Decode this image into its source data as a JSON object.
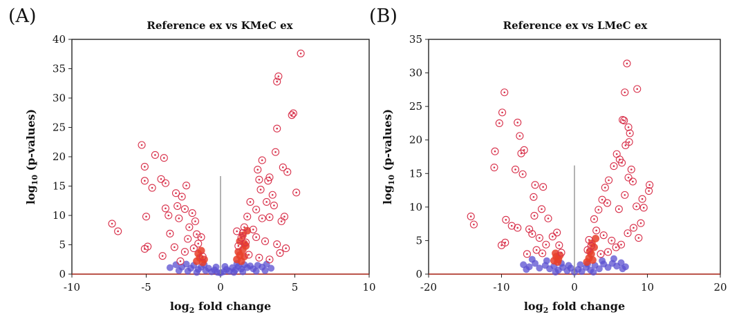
{
  "figure": {
    "panels": [
      {
        "letter": "(A)",
        "title": "Reference ex vs KMeC ex",
        "xlabel_base": "log",
        "xlabel_sub": "2",
        "xlabel_rest": " fold change",
        "ylabel_base": "log",
        "ylabel_sub": "10",
        "ylabel_rest": " (p-values)"
      },
      {
        "letter": "(B)",
        "title": "Reference ex vs LMeC ex",
        "xlabel_base": "log",
        "xlabel_sub": "2",
        "xlabel_rest": " fold change",
        "ylabel_base": "log",
        "ylabel_sub": "10",
        "ylabel_rest": " (p-values)"
      }
    ]
  },
  "colors": {
    "significant": "#d8304a",
    "nonsignificant": "#5a4fd0",
    "core": "#e8402a",
    "axis_red": "#c0392b"
  },
  "chart_data": [
    {
      "type": "scatter",
      "title": "Reference ex vs KMeC ex",
      "xlabel": "log2 fold change",
      "ylabel": "log10 (p-values)",
      "xlim": [
        -10,
        10
      ],
      "ylim": [
        0,
        40
      ],
      "xticks": [
        -10,
        -5,
        0,
        5,
        10
      ],
      "yticks": [
        0,
        5,
        10,
        15,
        20,
        25,
        30,
        35,
        40
      ],
      "grid": false,
      "center_line_top": 16.7,
      "series": [
        {
          "values": [
            [
              5.4,
              37.6
            ],
            [
              3.9,
              33.7
            ],
            [
              3.8,
              32.8
            ],
            [
              4.9,
              27.4
            ],
            [
              4.8,
              27.1
            ],
            [
              3.8,
              24.8
            ],
            [
              -5.3,
              22.0
            ],
            [
              -4.4,
              20.3
            ],
            [
              -3.8,
              19.8
            ],
            [
              -5.1,
              18.3
            ],
            [
              3.7,
              20.8
            ],
            [
              4.2,
              18.2
            ],
            [
              4.5,
              17.4
            ],
            [
              2.8,
              19.4
            ],
            [
              2.5,
              17.8
            ],
            [
              -4.0,
              16.2
            ],
            [
              -3.7,
              15.5
            ],
            [
              -2.3,
              15.1
            ],
            [
              -5.1,
              15.9
            ],
            [
              5.1,
              13.9
            ],
            [
              -3.0,
              13.8
            ],
            [
              3.2,
              15.9
            ],
            [
              3.3,
              16.5
            ],
            [
              2.6,
              16.1
            ],
            [
              2.7,
              14.4
            ],
            [
              -7.3,
              8.6
            ],
            [
              -6.9,
              7.3
            ],
            [
              -5.0,
              9.8
            ],
            [
              -4.9,
              4.7
            ],
            [
              -5.1,
              4.3
            ],
            [
              -3.5,
              10.0
            ],
            [
              -3.7,
              11.2
            ],
            [
              -2.9,
              11.6
            ],
            [
              -2.4,
              11.1
            ],
            [
              -1.9,
              10.4
            ],
            [
              -1.7,
              9.0
            ],
            [
              -2.8,
              9.5
            ],
            [
              -3.4,
              6.9
            ],
            [
              -2.1,
              8.0
            ],
            [
              -1.6,
              6.8
            ],
            [
              4.1,
              9.0
            ],
            [
              4.3,
              9.8
            ],
            [
              3.6,
              11.7
            ],
            [
              3.1,
              12.3
            ],
            [
              2.4,
              11.0
            ],
            [
              2.0,
              12.3
            ],
            [
              2.8,
              9.5
            ],
            [
              3.3,
              9.7
            ],
            [
              1.8,
              9.8
            ],
            [
              1.6,
              8.0
            ],
            [
              2.2,
              7.6
            ],
            [
              2.4,
              6.3
            ],
            [
              3.0,
              5.6
            ],
            [
              3.8,
              5.1
            ],
            [
              4.0,
              3.6
            ],
            [
              -3.9,
              3.1
            ],
            [
              -3.1,
              4.6
            ],
            [
              -2.4,
              3.8
            ],
            [
              -1.8,
              4.4
            ],
            [
              -1.5,
              5.2
            ],
            [
              -1.2,
              3.0
            ],
            [
              -2.7,
              2.2
            ],
            [
              1.2,
              4.8
            ],
            [
              1.4,
              6.2
            ],
            [
              1.7,
              5.4
            ],
            [
              1.9,
              3.3
            ],
            [
              2.6,
              2.8
            ],
            [
              3.3,
              2.5
            ],
            [
              -2.2,
              6.0
            ],
            [
              -1.3,
              6.3
            ],
            [
              1.1,
              7.3
            ],
            [
              1.5,
              7.0
            ],
            [
              3.5,
              13.5
            ],
            [
              -4.6,
              14.7
            ],
            [
              -2.6,
              13.2
            ],
            [
              4.4,
              4.4
            ]
          ]
        },
        {
          "values": [
            [
              -3.0,
              1.6
            ],
            [
              -2.6,
              1.2
            ],
            [
              -2.3,
              1.7
            ],
            [
              -2.0,
              1.0
            ],
            [
              -1.8,
              1.5
            ],
            [
              -1.5,
              0.8
            ],
            [
              -1.3,
              1.2
            ],
            [
              -1.0,
              0.6
            ],
            [
              -0.8,
              1.0
            ],
            [
              -0.6,
              0.4
            ],
            [
              -0.4,
              0.7
            ],
            [
              -0.2,
              0.3
            ],
            [
              0.0,
              0.2
            ],
            [
              0.2,
              0.4
            ],
            [
              0.4,
              0.8
            ],
            [
              0.6,
              0.5
            ],
            [
              0.8,
              1.1
            ],
            [
              1.0,
              0.7
            ],
            [
              1.2,
              1.3
            ],
            [
              1.4,
              0.9
            ],
            [
              1.6,
              1.6
            ],
            [
              1.8,
              1.1
            ],
            [
              2.0,
              1.4
            ],
            [
              2.2,
              0.9
            ],
            [
              2.5,
              1.5
            ],
            [
              2.8,
              1.2
            ],
            [
              3.1,
              1.7
            ],
            [
              3.4,
              1.0
            ],
            [
              -3.4,
              1.1
            ],
            [
              -2.8,
              0.6
            ],
            [
              -2.2,
              0.5
            ],
            [
              -1.6,
              0.3
            ],
            [
              0.9,
              0.3
            ],
            [
              1.5,
              0.4
            ],
            [
              2.4,
              0.5
            ],
            [
              3.0,
              0.6
            ],
            [
              -0.3,
              1.2
            ],
            [
              0.3,
              1.3
            ],
            [
              -1.1,
              1.6
            ],
            [
              1.1,
              1.8
            ]
          ]
        },
        {
          "values": [
            [
              -1.6,
              2.2
            ],
            [
              -1.4,
              2.8
            ],
            [
              -1.2,
              2.0
            ],
            [
              -1.5,
              3.5
            ],
            [
              -1.3,
              4.0
            ],
            [
              -1.1,
              2.5
            ],
            [
              1.1,
              2.5
            ],
            [
              1.3,
              3.2
            ],
            [
              1.5,
              4.2
            ],
            [
              1.2,
              3.8
            ],
            [
              1.4,
              2.2
            ],
            [
              1.6,
              3.0
            ],
            [
              1.7,
              4.8
            ],
            [
              1.3,
              5.6
            ],
            [
              1.5,
              6.6
            ],
            [
              1.8,
              7.4
            ],
            [
              1.6,
              5.2
            ]
          ]
        }
      ]
    },
    {
      "type": "scatter",
      "title": "Reference ex vs LMeC ex",
      "xlabel": "log2 fold change",
      "ylabel": "log10 (p-values)",
      "xlim": [
        -20,
        20
      ],
      "ylim": [
        0,
        35
      ],
      "xticks": [
        -20,
        -10,
        0,
        10,
        20
      ],
      "yticks": [
        0,
        5,
        10,
        15,
        20,
        25,
        30,
        35
      ],
      "grid": false,
      "center_line_top": 16.2,
      "series": [
        {
          "values": [
            [
              7.2,
              31.4
            ],
            [
              8.6,
              27.6
            ],
            [
              6.9,
              27.1
            ],
            [
              -9.6,
              27.1
            ],
            [
              -9.9,
              24.1
            ],
            [
              -10.3,
              22.5
            ],
            [
              -7.8,
              22.6
            ],
            [
              -7.5,
              20.6
            ],
            [
              -6.9,
              18.5
            ],
            [
              -7.3,
              18.0
            ],
            [
              -10.9,
              18.3
            ],
            [
              -11.0,
              15.9
            ],
            [
              -8.1,
              15.6
            ],
            [
              -7.1,
              14.9
            ],
            [
              6.6,
              23.0
            ],
            [
              6.8,
              22.9
            ],
            [
              7.4,
              21.9
            ],
            [
              7.6,
              21.0
            ],
            [
              7.0,
              19.2
            ],
            [
              7.5,
              19.7
            ],
            [
              5.8,
              17.9
            ],
            [
              6.2,
              17.1
            ],
            [
              6.5,
              16.6
            ],
            [
              5.4,
              16.1
            ],
            [
              7.8,
              15.6
            ],
            [
              7.4,
              14.4
            ],
            [
              8.0,
              13.8
            ],
            [
              -14.2,
              8.6
            ],
            [
              -13.8,
              7.4
            ],
            [
              -9.4,
              8.1
            ],
            [
              -8.6,
              7.2
            ],
            [
              -7.8,
              6.9
            ],
            [
              -9.5,
              4.7
            ],
            [
              -10.0,
              4.3
            ],
            [
              -5.4,
              13.3
            ],
            [
              -5.6,
              11.5
            ],
            [
              -4.5,
              9.7
            ],
            [
              -5.5,
              8.7
            ],
            [
              -6.2,
              6.7
            ],
            [
              -4.3,
              13.0
            ],
            [
              -3.6,
              8.3
            ],
            [
              10.3,
              13.3
            ],
            [
              10.2,
              12.4
            ],
            [
              9.3,
              11.2
            ],
            [
              8.5,
              10.1
            ],
            [
              9.5,
              9.9
            ],
            [
              8.1,
              6.9
            ],
            [
              7.3,
              6.1
            ],
            [
              6.1,
              9.7
            ],
            [
              4.7,
              14.0
            ],
            [
              4.2,
              12.9
            ],
            [
              4.5,
              10.6
            ],
            [
              3.8,
              11.1
            ],
            [
              3.3,
              9.6
            ],
            [
              2.7,
              8.2
            ],
            [
              3.0,
              6.5
            ],
            [
              4.0,
              5.8
            ],
            [
              5.1,
              5.0
            ],
            [
              6.4,
              4.4
            ],
            [
              -5.8,
              6.0
            ],
            [
              -4.8,
              5.4
            ],
            [
              -3.9,
              4.4
            ],
            [
              -3.0,
              5.6
            ],
            [
              -2.4,
              6.2
            ],
            [
              -2.1,
              4.3
            ],
            [
              -1.8,
              3.2
            ],
            [
              -4.4,
              3.1
            ],
            [
              -5.2,
              3.6
            ],
            [
              -6.5,
              3.0
            ],
            [
              2.3,
              4.2
            ],
            [
              2.0,
              5.1
            ],
            [
              1.8,
              3.6
            ],
            [
              3.6,
              3.0
            ],
            [
              4.6,
              3.3
            ],
            [
              5.7,
              4.0
            ],
            [
              8.8,
              5.4
            ],
            [
              9.1,
              7.6
            ],
            [
              6.9,
              11.8
            ]
          ]
        },
        {
          "values": [
            [
              -7.0,
              1.4
            ],
            [
              -6.2,
              1.1
            ],
            [
              -5.4,
              1.6
            ],
            [
              -4.8,
              0.9
            ],
            [
              -4.0,
              1.3
            ],
            [
              -3.4,
              0.8
            ],
            [
              -2.8,
              1.2
            ],
            [
              -2.2,
              0.6
            ],
            [
              -1.6,
              1.0
            ],
            [
              -1.0,
              0.5
            ],
            [
              -0.5,
              0.9
            ],
            [
              0.0,
              0.3
            ],
            [
              0.5,
              0.7
            ],
            [
              1.0,
              0.4
            ],
            [
              1.6,
              1.0
            ],
            [
              2.2,
              0.6
            ],
            [
              2.8,
              1.3
            ],
            [
              3.4,
              0.8
            ],
            [
              4.0,
              1.5
            ],
            [
              4.6,
              1.0
            ],
            [
              5.2,
              1.6
            ],
            [
              5.8,
              1.2
            ],
            [
              6.4,
              1.7
            ],
            [
              7.0,
              1.1
            ],
            [
              -3.8,
              2.0
            ],
            [
              -5.8,
              2.2
            ],
            [
              3.8,
              2.0
            ],
            [
              5.4,
              2.3
            ],
            [
              -1.8,
              1.6
            ],
            [
              1.8,
              1.5
            ],
            [
              -6.6,
              0.7
            ],
            [
              6.6,
              0.8
            ],
            [
              -2.6,
              0.3
            ],
            [
              2.6,
              0.3
            ],
            [
              -0.8,
              1.3
            ],
            [
              0.8,
              1.4
            ]
          ]
        },
        {
          "values": [
            [
              -2.8,
              2.0
            ],
            [
              -2.5,
              2.6
            ],
            [
              -2.2,
              2.2
            ],
            [
              -2.6,
              3.1
            ],
            [
              -2.3,
              1.8
            ],
            [
              -2.0,
              2.8
            ],
            [
              1.7,
              1.8
            ],
            [
              2.0,
              2.4
            ],
            [
              2.3,
              3.0
            ],
            [
              2.5,
              2.1
            ],
            [
              2.1,
              3.4
            ],
            [
              2.7,
              4.0
            ],
            [
              2.4,
              4.6
            ],
            [
              2.9,
              5.3
            ]
          ]
        }
      ]
    }
  ]
}
